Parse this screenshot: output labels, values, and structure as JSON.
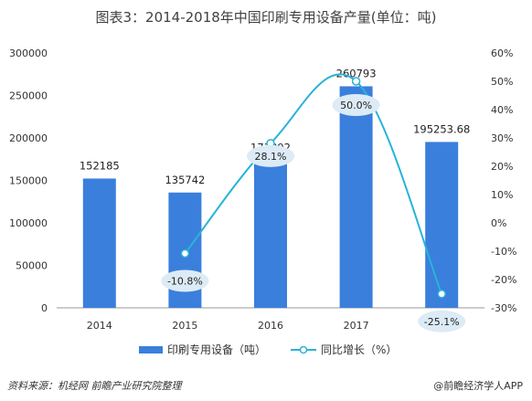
{
  "title": "图表3：2014-2018年中国印刷专用设备产量(单位：吨)",
  "source": "资料来源：机经网 前瞻产业研究院整理",
  "brand": "@前瞻经济学人APP",
  "chart_data": {
    "type": "bar",
    "categories": [
      "2014",
      "2015",
      "2016",
      "2017",
      "2018"
    ],
    "series": [
      {
        "name": "印刷专用设备（吨）",
        "type": "bar",
        "axis": "left",
        "values": [
          152185,
          135742,
          173892,
          260793,
          195253.68
        ],
        "labels": [
          "152185",
          "135742",
          "173892",
          "260793",
          "195253.68"
        ],
        "color": "#3a7fdc"
      },
      {
        "name": "同比增长（%）",
        "type": "line",
        "axis": "right",
        "values": [
          null,
          -10.8,
          28.1,
          50.0,
          -25.1
        ],
        "labels": [
          "",
          "-10.8%",
          "28.1%",
          "50.0%",
          "-25.1%"
        ],
        "color": "#29b3d9"
      }
    ],
    "left_axis": {
      "min": 0,
      "max": 300000,
      "ticks": [
        "0",
        "50000",
        "100000",
        "150000",
        "200000",
        "250000",
        "300000"
      ]
    },
    "right_axis": {
      "min": -30,
      "max": 60,
      "ticks": [
        "-30%",
        "-20%",
        "-10%",
        "0%",
        "10%",
        "20%",
        "30%",
        "40%",
        "50%",
        "60%"
      ]
    },
    "legend_position": "bottom",
    "grid": false
  }
}
